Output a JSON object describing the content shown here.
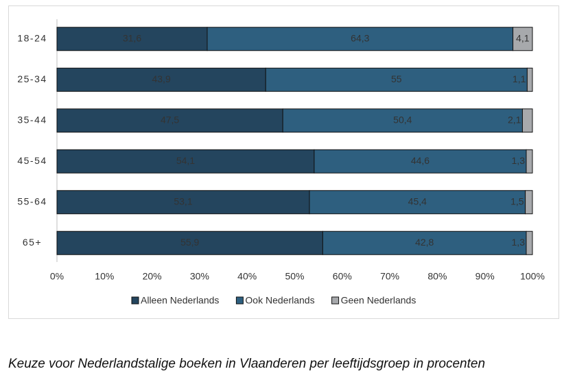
{
  "chart_data": {
    "type": "stacked-bar-horizontal",
    "caption": "Keuze voor Nederlandstalige boeken in Vlaanderen per leeftijdsgroep in procenten",
    "categories": [
      "18-24",
      "25-34",
      "35-44",
      "45-54",
      "55-64",
      "65+"
    ],
    "series": [
      {
        "name": "Alleen Nederlands",
        "color": "#24455e",
        "values": [
          31.6,
          43.9,
          47.5,
          54.1,
          53.1,
          55.9
        ],
        "value_labels": [
          "31,6",
          "43,9",
          "47,5",
          "54,1",
          "53,1",
          "55,9"
        ]
      },
      {
        "name": "Ook Nederlands",
        "color": "#2e5f7f",
        "values": [
          64.3,
          55,
          50.4,
          44.6,
          45.4,
          42.8
        ],
        "value_labels": [
          "64,3",
          "55",
          "50,4",
          "44,6",
          "45,4",
          "42,8"
        ]
      },
      {
        "name": "Geen Nederlands",
        "color": "#a7a9ac",
        "values": [
          4.1,
          1.1,
          2.1,
          1.3,
          1.5,
          1.3
        ],
        "value_labels": [
          "4,1",
          "1,1",
          "2,1",
          "1,3",
          "1,5",
          "1,3"
        ]
      }
    ],
    "xlim": [
      0,
      100
    ],
    "xticks": [
      {
        "value": 0,
        "label": "0%"
      },
      {
        "value": 10,
        "label": "10%"
      },
      {
        "value": 20,
        "label": "20%"
      },
      {
        "value": 30,
        "label": "30%"
      },
      {
        "value": 40,
        "label": "40%"
      },
      {
        "value": 50,
        "label": "50%"
      },
      {
        "value": 60,
        "label": "60%"
      },
      {
        "value": 70,
        "label": "70%"
      },
      {
        "value": 80,
        "label": "80%"
      },
      {
        "value": 90,
        "label": "90%"
      },
      {
        "value": 100,
        "label": "100%"
      }
    ],
    "legend": "bottom"
  }
}
